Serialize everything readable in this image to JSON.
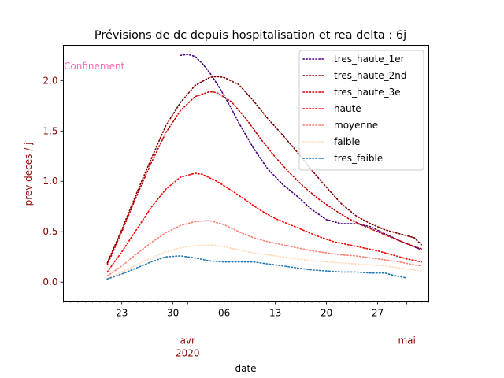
{
  "chart_data": {
    "type": "line",
    "title": "Prévisions de dc depuis hospitalisation et rea delta : 6j",
    "xlabel": "date",
    "ylabel": "prev deces / j",
    "annotation": "Confinement",
    "annotation_color": "#ff69b4",
    "label_color": "#8b0000",
    "x_axis": {
      "type": "date",
      "range": [
        "2020-03-15",
        "2020-05-04"
      ],
      "ticks": [
        {
          "date": "2020-03-23",
          "label": "23"
        },
        {
          "date": "2020-03-30",
          "label": "30"
        },
        {
          "date": "2020-04-06",
          "label": "06"
        },
        {
          "date": "2020-04-13",
          "label": "13"
        },
        {
          "date": "2020-04-20",
          "label": "20"
        },
        {
          "date": "2020-04-27",
          "label": "27"
        }
      ],
      "month_labels": [
        {
          "date": "2020-04-01",
          "label": "avr",
          "year": "2020"
        },
        {
          "date": "2020-05-01",
          "label": "mai",
          "year": ""
        }
      ]
    },
    "y_axis": {
      "ylim": [
        -0.19,
        2.35
      ],
      "ticks": [
        {
          "value": 0.0,
          "label": "0.0"
        },
        {
          "value": 0.5,
          "label": "0.5"
        },
        {
          "value": 1.0,
          "label": "1.0"
        },
        {
          "value": 1.5,
          "label": "1.5"
        },
        {
          "value": 2.0,
          "label": "2.0"
        }
      ]
    },
    "grid": false,
    "legend_position": "top-right",
    "series": [
      {
        "name": "tres_haute_1er",
        "color": "#4b0082",
        "points": [
          [
            "2020-03-31",
            2.25
          ],
          [
            "2020-04-01",
            2.26
          ],
          [
            "2020-04-02",
            2.24
          ],
          [
            "2020-04-03",
            2.17
          ],
          [
            "2020-04-04",
            2.08
          ],
          [
            "2020-04-05",
            1.97
          ],
          [
            "2020-04-06",
            1.85
          ],
          [
            "2020-04-07",
            1.72
          ],
          [
            "2020-04-08",
            1.58
          ],
          [
            "2020-04-10",
            1.33
          ],
          [
            "2020-04-12",
            1.12
          ],
          [
            "2020-04-14",
            0.97
          ],
          [
            "2020-04-16",
            0.85
          ],
          [
            "2020-04-18",
            0.72
          ],
          [
            "2020-04-20",
            0.62
          ],
          [
            "2020-04-22",
            0.58
          ],
          [
            "2020-04-24",
            0.58
          ],
          [
            "2020-04-26",
            0.55
          ],
          [
            "2020-04-28",
            0.48
          ],
          [
            "2020-04-30",
            0.41
          ],
          [
            "2020-05-02",
            0.35
          ],
          [
            "2020-05-03",
            0.32
          ]
        ]
      },
      {
        "name": "tres_haute_2nd",
        "color": "#800000",
        "points": [
          [
            "2020-03-21",
            0.19
          ],
          [
            "2020-03-23",
            0.52
          ],
          [
            "2020-03-25",
            0.88
          ],
          [
            "2020-03-27",
            1.22
          ],
          [
            "2020-03-29",
            1.55
          ],
          [
            "2020-03-31",
            1.78
          ],
          [
            "2020-04-02",
            1.95
          ],
          [
            "2020-04-04",
            2.03
          ],
          [
            "2020-04-05",
            2.04
          ],
          [
            "2020-04-06",
            2.03
          ],
          [
            "2020-04-08",
            1.96
          ],
          [
            "2020-04-10",
            1.8
          ],
          [
            "2020-04-12",
            1.62
          ],
          [
            "2020-04-14",
            1.46
          ],
          [
            "2020-04-16",
            1.29
          ],
          [
            "2020-04-18",
            1.11
          ],
          [
            "2020-04-20",
            0.94
          ],
          [
            "2020-04-22",
            0.78
          ],
          [
            "2020-04-24",
            0.66
          ],
          [
            "2020-04-26",
            0.58
          ],
          [
            "2020-04-28",
            0.52
          ],
          [
            "2020-04-30",
            0.48
          ],
          [
            "2020-05-02",
            0.44
          ],
          [
            "2020-05-03",
            0.37
          ]
        ]
      },
      {
        "name": "tres_haute_3e",
        "color": "#cc0000",
        "points": [
          [
            "2020-03-21",
            0.17
          ],
          [
            "2020-03-23",
            0.5
          ],
          [
            "2020-03-25",
            0.85
          ],
          [
            "2020-03-27",
            1.18
          ],
          [
            "2020-03-29",
            1.48
          ],
          [
            "2020-03-31",
            1.7
          ],
          [
            "2020-04-02",
            1.84
          ],
          [
            "2020-04-04",
            1.89
          ],
          [
            "2020-04-05",
            1.88
          ],
          [
            "2020-04-07",
            1.79
          ],
          [
            "2020-04-09",
            1.62
          ],
          [
            "2020-04-11",
            1.42
          ],
          [
            "2020-04-13",
            1.24
          ],
          [
            "2020-04-15",
            1.08
          ],
          [
            "2020-04-17",
            0.94
          ],
          [
            "2020-04-19",
            0.82
          ],
          [
            "2020-04-21",
            0.72
          ],
          [
            "2020-04-23",
            0.63
          ],
          [
            "2020-04-25",
            0.56
          ],
          [
            "2020-04-27",
            0.5
          ],
          [
            "2020-04-29",
            0.44
          ],
          [
            "2020-05-01",
            0.38
          ],
          [
            "2020-05-03",
            0.33
          ]
        ]
      },
      {
        "name": "haute",
        "color": "#ff0000",
        "points": [
          [
            "2020-03-21",
            0.1
          ],
          [
            "2020-03-23",
            0.3
          ],
          [
            "2020-03-25",
            0.52
          ],
          [
            "2020-03-27",
            0.74
          ],
          [
            "2020-03-29",
            0.92
          ],
          [
            "2020-03-31",
            1.04
          ],
          [
            "2020-04-02",
            1.08
          ],
          [
            "2020-04-03",
            1.07
          ],
          [
            "2020-04-05",
            1.0
          ],
          [
            "2020-04-07",
            0.91
          ],
          [
            "2020-04-09",
            0.81
          ],
          [
            "2020-04-11",
            0.71
          ],
          [
            "2020-04-13",
            0.63
          ],
          [
            "2020-04-15",
            0.57
          ],
          [
            "2020-04-17",
            0.51
          ],
          [
            "2020-04-19",
            0.45
          ],
          [
            "2020-04-21",
            0.4
          ],
          [
            "2020-04-23",
            0.37
          ],
          [
            "2020-04-25",
            0.34
          ],
          [
            "2020-04-27",
            0.31
          ],
          [
            "2020-04-29",
            0.27
          ],
          [
            "2020-05-01",
            0.23
          ],
          [
            "2020-05-03",
            0.2
          ]
        ]
      },
      {
        "name": "moyenne",
        "color": "#fa8072",
        "points": [
          [
            "2020-03-21",
            0.06
          ],
          [
            "2020-03-23",
            0.16
          ],
          [
            "2020-03-25",
            0.28
          ],
          [
            "2020-03-27",
            0.39
          ],
          [
            "2020-03-29",
            0.49
          ],
          [
            "2020-03-31",
            0.56
          ],
          [
            "2020-04-02",
            0.6
          ],
          [
            "2020-04-04",
            0.61
          ],
          [
            "2020-04-06",
            0.57
          ],
          [
            "2020-04-08",
            0.5
          ],
          [
            "2020-04-10",
            0.44
          ],
          [
            "2020-04-12",
            0.4
          ],
          [
            "2020-04-14",
            0.37
          ],
          [
            "2020-04-16",
            0.34
          ],
          [
            "2020-04-18",
            0.31
          ],
          [
            "2020-04-20",
            0.29
          ],
          [
            "2020-04-22",
            0.27
          ],
          [
            "2020-04-24",
            0.26
          ],
          [
            "2020-04-26",
            0.24
          ],
          [
            "2020-04-28",
            0.22
          ],
          [
            "2020-04-30",
            0.2
          ],
          [
            "2020-05-02",
            0.17
          ],
          [
            "2020-05-03",
            0.16
          ]
        ]
      },
      {
        "name": "faible",
        "color": "#ffdab9",
        "points": [
          [
            "2020-03-21",
            0.04
          ],
          [
            "2020-03-23",
            0.1
          ],
          [
            "2020-03-25",
            0.17
          ],
          [
            "2020-03-27",
            0.24
          ],
          [
            "2020-03-29",
            0.3
          ],
          [
            "2020-03-31",
            0.34
          ],
          [
            "2020-04-02",
            0.36
          ],
          [
            "2020-04-04",
            0.37
          ],
          [
            "2020-04-06",
            0.35
          ],
          [
            "2020-04-08",
            0.32
          ],
          [
            "2020-04-10",
            0.29
          ],
          [
            "2020-04-12",
            0.27
          ],
          [
            "2020-04-14",
            0.25
          ],
          [
            "2020-04-16",
            0.23
          ],
          [
            "2020-04-18",
            0.21
          ],
          [
            "2020-04-20",
            0.2
          ],
          [
            "2020-04-22",
            0.19
          ],
          [
            "2020-04-24",
            0.18
          ],
          [
            "2020-04-26",
            0.17
          ],
          [
            "2020-04-28",
            0.16
          ],
          [
            "2020-04-30",
            0.14
          ],
          [
            "2020-05-02",
            0.12
          ],
          [
            "2020-05-03",
            0.11
          ]
        ]
      },
      {
        "name": "tres_faible",
        "color": "#1f77b4",
        "points": [
          [
            "2020-03-21",
            0.03
          ],
          [
            "2020-03-23",
            0.08
          ],
          [
            "2020-03-25",
            0.14
          ],
          [
            "2020-03-27",
            0.2
          ],
          [
            "2020-03-29",
            0.25
          ],
          [
            "2020-03-31",
            0.26
          ],
          [
            "2020-04-02",
            0.24
          ],
          [
            "2020-04-04",
            0.21
          ],
          [
            "2020-04-06",
            0.2
          ],
          [
            "2020-04-08",
            0.2
          ],
          [
            "2020-04-10",
            0.2
          ],
          [
            "2020-04-12",
            0.18
          ],
          [
            "2020-04-14",
            0.16
          ],
          [
            "2020-04-16",
            0.14
          ],
          [
            "2020-04-18",
            0.12
          ],
          [
            "2020-04-20",
            0.11
          ],
          [
            "2020-04-22",
            0.1
          ],
          [
            "2020-04-24",
            0.1
          ],
          [
            "2020-04-26",
            0.09
          ],
          [
            "2020-04-28",
            0.09
          ],
          [
            "2020-04-29",
            0.07
          ],
          [
            "2020-05-01",
            0.04
          ]
        ]
      }
    ]
  }
}
